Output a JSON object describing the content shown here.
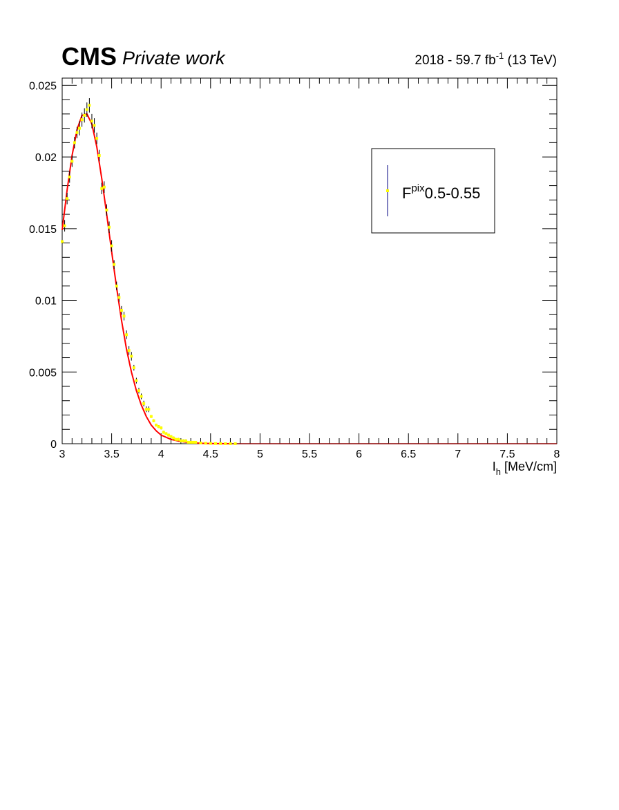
{
  "header": {
    "experiment": "CMS",
    "subtitle": "Private work",
    "lumi_prefix": "2018 - 59.7 fb",
    "lumi_exp": "-1",
    "lumi_suffix": " (13 TeV)"
  },
  "legend": {
    "label_main": "F",
    "label_sup": "pix",
    "label_tail": "0.5-0.55"
  },
  "chart_data": {
    "type": "scatter",
    "xlabel_main": "I",
    "xlabel_sub": "h",
    "xlabel_tail": " [MeV/cm]",
    "ylabel": "",
    "xlim": [
      3,
      8
    ],
    "ylim": [
      0,
      0.0255
    ],
    "x_ticks": [
      "3",
      "3.5",
      "4",
      "4.5",
      "5",
      "5.5",
      "6",
      "6.5",
      "7",
      "7.5",
      "8"
    ],
    "y_ticks": [
      "0",
      "0.005",
      "0.01",
      "0.015",
      "0.02",
      "0.025"
    ],
    "legend_position": "top-right",
    "colors": {
      "points": "#ffff00",
      "errors": "#000080",
      "fit": "#ff0000",
      "fit_tail": "#8b0000"
    },
    "series": [
      {
        "name": "F^{pix}0.5-0.55",
        "x": [
          3.0,
          3.025,
          3.05,
          3.075,
          3.1,
          3.125,
          3.15,
          3.175,
          3.2,
          3.225,
          3.25,
          3.275,
          3.3,
          3.325,
          3.35,
          3.375,
          3.4,
          3.425,
          3.45,
          3.475,
          3.5,
          3.525,
          3.55,
          3.575,
          3.6,
          3.625,
          3.65,
          3.675,
          3.7,
          3.725,
          3.75,
          3.775,
          3.8,
          3.825,
          3.85,
          3.875,
          3.9,
          3.925,
          3.95,
          3.975,
          4.0,
          4.025,
          4.05,
          4.075,
          4.1,
          4.125,
          4.15,
          4.175,
          4.2,
          4.225,
          4.25,
          4.275,
          4.3,
          4.325,
          4.35,
          4.4,
          4.45,
          4.5,
          4.55,
          4.6,
          4.65,
          4.7,
          4.75
        ],
        "y": [
          0.0141,
          0.0152,
          0.0171,
          0.0186,
          0.0197,
          0.021,
          0.0217,
          0.022,
          0.0226,
          0.0229,
          0.0233,
          0.0236,
          0.0225,
          0.0222,
          0.0213,
          0.0201,
          0.0178,
          0.0179,
          0.0163,
          0.0151,
          0.0138,
          0.0125,
          0.011,
          0.0102,
          0.0093,
          0.0089,
          0.0076,
          0.0065,
          0.0061,
          0.0053,
          0.0044,
          0.0037,
          0.0033,
          0.0028,
          0.0024,
          0.0024,
          0.0019,
          0.0016,
          0.0013,
          0.0012,
          0.0011,
          0.0008,
          0.0007,
          0.0006,
          0.0005,
          0.0004,
          0.0003,
          0.0003,
          0.0002,
          0.0002,
          0.0002,
          0.0001,
          0.0001,
          0.0001,
          0.0001,
          5e-05,
          3e-05,
          2e-05,
          1e-05,
          1e-05,
          0.0,
          0.0,
          0.0
        ],
        "yerr": [
          0.0004,
          0.0004,
          0.0004,
          0.0004,
          0.0004,
          0.0004,
          0.0004,
          0.0005,
          0.0005,
          0.0005,
          0.0005,
          0.0005,
          0.0005,
          0.0005,
          0.0004,
          0.0004,
          0.0004,
          0.0004,
          0.0004,
          0.0004,
          0.0004,
          0.0003,
          0.0003,
          0.0003,
          0.0003,
          0.0003,
          0.0003,
          0.0003,
          0.0003,
          0.0002,
          0.0002,
          0.0002,
          0.0002,
          0.0002,
          0.0002,
          0.0002,
          0.0001,
          0.0001,
          0.0001,
          0.0001,
          0.0001,
          0.0001,
          0.0001,
          0.0001,
          0.0001,
          0.0001,
          0.0001,
          0.0001,
          0.0001,
          0.0001,
          0.0001,
          0.0,
          0.0,
          0.0,
          0.0,
          0.0,
          0.0,
          0.0,
          0.0,
          0.0,
          0.0,
          0.0,
          0.0
        ]
      }
    ],
    "fit": {
      "x": [
        3.0,
        3.05,
        3.1,
        3.15,
        3.2,
        3.25,
        3.3,
        3.35,
        3.4,
        3.45,
        3.5,
        3.55,
        3.6,
        3.65,
        3.7,
        3.75,
        3.8,
        3.85,
        3.9,
        3.95,
        4.0,
        4.1,
        4.2,
        4.3,
        4.4,
        4.5,
        4.7,
        5.0,
        6.0,
        7.0,
        8.0
      ],
      "y": [
        0.0149,
        0.0177,
        0.0201,
        0.0219,
        0.0229,
        0.023,
        0.0223,
        0.0207,
        0.0185,
        0.016,
        0.0134,
        0.0109,
        0.0086,
        0.0066,
        0.005,
        0.0037,
        0.0027,
        0.0019,
        0.0013,
        0.0009,
        0.0006,
        0.0003,
        0.00015,
        7e-05,
        3e-05,
        1e-05,
        0.0,
        0.0,
        0.0,
        0.0,
        0.0
      ]
    }
  }
}
